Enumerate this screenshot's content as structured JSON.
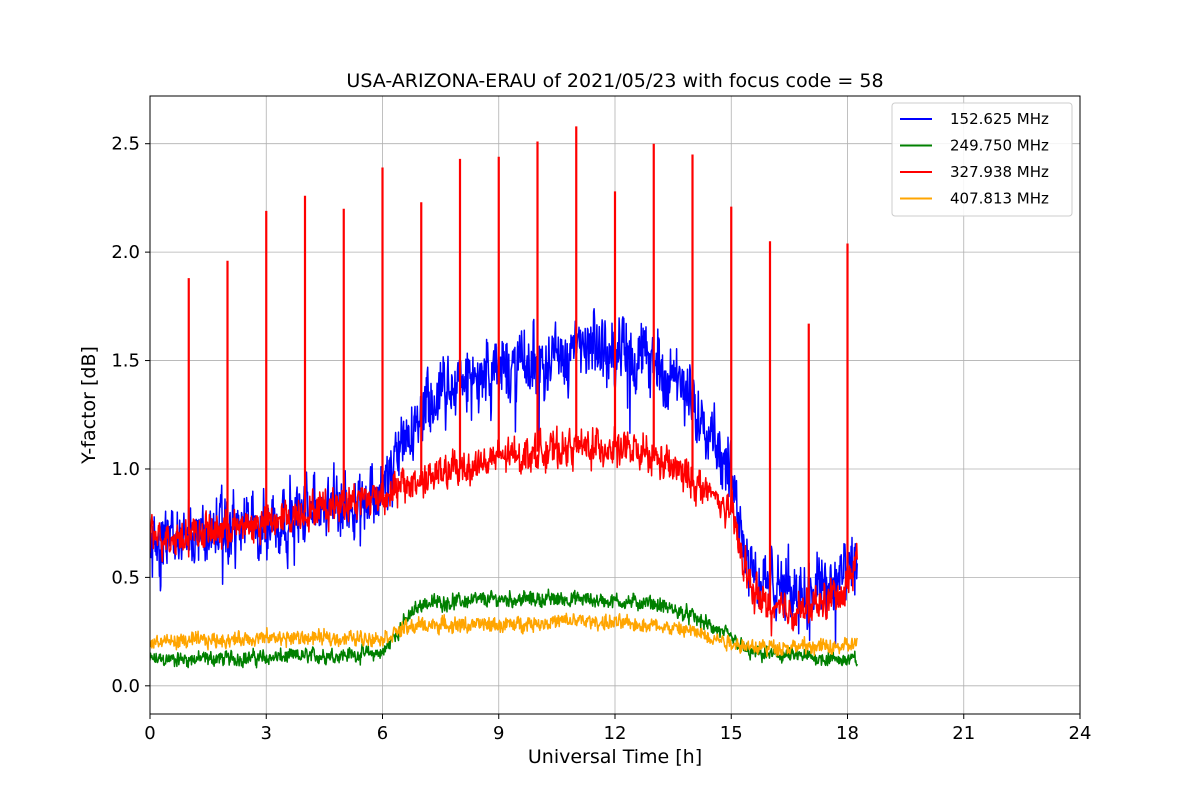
{
  "chart_data": {
    "type": "line",
    "title": "USA-ARIZONA-ERAU of 2021/05/23 with focus code = 58",
    "xlabel": "Universal Time [h]",
    "ylabel": "Y-factor [dB]",
    "xlim": [
      0,
      24
    ],
    "ylim": [
      -0.13,
      2.72
    ],
    "xticks": [
      "0",
      "3",
      "6",
      "9",
      "12",
      "15",
      "18",
      "21",
      "24"
    ],
    "yticks": [
      "0.0",
      "0.5",
      "1.0",
      "1.5",
      "2.0",
      "2.5"
    ],
    "grid": true,
    "legend_position": "top-right",
    "data_end_hour": 18.25,
    "series": [
      {
        "name": "152.625 MHz",
        "color": "#0000ff",
        "envelope_x": [
          0,
          1,
          2,
          3,
          4,
          5,
          6,
          6.5,
          7,
          8,
          9,
          10,
          11,
          12,
          13,
          14,
          14.5,
          15,
          15.5,
          16,
          17,
          18,
          18.25
        ],
        "envelope_y": [
          0.65,
          0.7,
          0.72,
          0.75,
          0.8,
          0.85,
          0.9,
          1.1,
          1.25,
          1.4,
          1.45,
          1.5,
          1.55,
          1.55,
          1.5,
          1.3,
          1.2,
          0.95,
          0.55,
          0.45,
          0.45,
          0.5,
          0.55
        ],
        "noise": 0.22
      },
      {
        "name": "249.750 MHz",
        "color": "#008000",
        "envelope_x": [
          0,
          3,
          6,
          6.5,
          7,
          9,
          11,
          13,
          14,
          15,
          15.5,
          18,
          18.25
        ],
        "envelope_y": [
          0.12,
          0.13,
          0.15,
          0.28,
          0.38,
          0.4,
          0.4,
          0.38,
          0.32,
          0.22,
          0.15,
          0.12,
          0.12
        ],
        "noise": 0.05
      },
      {
        "name": "327.938 MHz",
        "color": "#ff0000",
        "envelope_x": [
          0,
          1,
          2,
          3,
          4,
          5,
          6,
          7,
          8,
          9,
          10,
          11,
          12,
          13,
          14,
          15,
          15.5,
          16,
          17,
          18,
          18.25
        ],
        "envelope_y": [
          0.68,
          0.7,
          0.72,
          0.75,
          0.8,
          0.85,
          0.88,
          0.95,
          1.0,
          1.05,
          1.08,
          1.1,
          1.1,
          1.05,
          0.95,
          0.8,
          0.45,
          0.35,
          0.35,
          0.45,
          0.6
        ],
        "noise": 0.12,
        "spikes": [
          {
            "x": 1,
            "y": 1.88
          },
          {
            "x": 2,
            "y": 1.96
          },
          {
            "x": 3,
            "y": 2.19
          },
          {
            "x": 4,
            "y": 2.26
          },
          {
            "x": 5,
            "y": 2.2
          },
          {
            "x": 6,
            "y": 2.39
          },
          {
            "x": 7,
            "y": 2.23
          },
          {
            "x": 8,
            "y": 2.43
          },
          {
            "x": 9,
            "y": 2.44
          },
          {
            "x": 10,
            "y": 2.51
          },
          {
            "x": 11,
            "y": 2.58
          },
          {
            "x": 12,
            "y": 2.28
          },
          {
            "x": 13,
            "y": 2.5
          },
          {
            "x": 14,
            "y": 2.45
          },
          {
            "x": 15,
            "y": 2.21
          },
          {
            "x": 16,
            "y": 2.05
          },
          {
            "x": 17,
            "y": 1.67
          },
          {
            "x": 18,
            "y": 2.04
          }
        ]
      },
      {
        "name": "407.813 MHz",
        "color": "#ffa500",
        "envelope_x": [
          0,
          3,
          6,
          6.5,
          7,
          9,
          11,
          13,
          14,
          15,
          15.5,
          18,
          18.25
        ],
        "envelope_y": [
          0.2,
          0.22,
          0.22,
          0.26,
          0.28,
          0.28,
          0.3,
          0.28,
          0.25,
          0.2,
          0.18,
          0.18,
          0.2
        ],
        "noise": 0.05
      }
    ]
  }
}
